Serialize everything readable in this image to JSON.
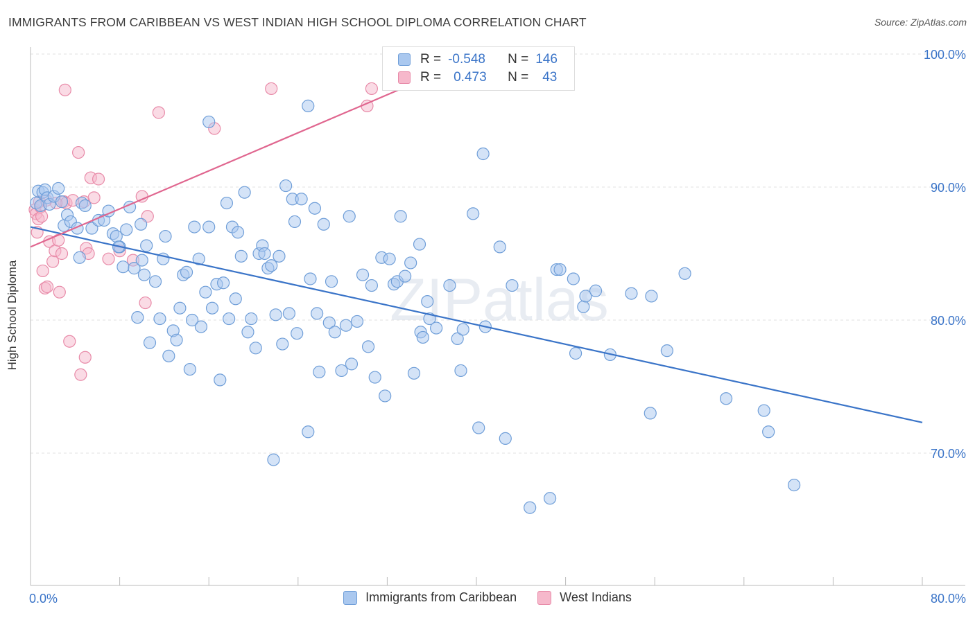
{
  "title": "IMMIGRANTS FROM CARIBBEAN VS WEST INDIAN HIGH SCHOOL DIPLOMA CORRELATION CHART",
  "source": "Source: ZipAtlas.com",
  "watermark": "ZIPatlas",
  "colors": {
    "blue_fill": "#aac8ef",
    "blue_stroke": "#6f9ed8",
    "blue_line": "#3a74c8",
    "pink_fill": "#f6b8cb",
    "pink_stroke": "#e88aa8",
    "pink_line": "#e0668f",
    "tick_text": "#3a74c8",
    "grid": "#e2e2e2"
  },
  "legend": {
    "rows": [
      {
        "r_label": "R =",
        "r_value": "-0.548",
        "n_label": "N =",
        "n_value": "146"
      },
      {
        "r_label": "R =",
        "r_value": "0.473",
        "n_label": "N =",
        "n_value": "43"
      }
    ]
  },
  "chart_data": {
    "type": "scatter",
    "title": "IMMIGRANTS FROM CARIBBEAN VS WEST INDIAN HIGH SCHOOL DIPLOMA CORRELATION CHART",
    "xlabel": "",
    "ylabel": "High School Diploma",
    "xlim": [
      0,
      80
    ],
    "ylim": [
      60,
      102
    ],
    "x_tick_labels": [
      "0.0%",
      "80.0%"
    ],
    "y_ticks": [
      70,
      80,
      90,
      100
    ],
    "y_tick_labels": [
      "70.0%",
      "80.0%",
      "90.0%",
      "100.0%"
    ],
    "grid": true,
    "legend_position": "top-center and bottom",
    "series": [
      {
        "name": "Immigrants from Caribbean",
        "trend": {
          "x": [
            0,
            80
          ],
          "y": [
            87.0,
            72.3
          ]
        },
        "points": [
          [
            0.5,
            88.8
          ],
          [
            0.7,
            89.7
          ],
          [
            0.9,
            88.6
          ],
          [
            1.1,
            89.6
          ],
          [
            1.3,
            89.8
          ],
          [
            1.5,
            89.2
          ],
          [
            1.7,
            88.7
          ],
          [
            2.1,
            89.3
          ],
          [
            2.5,
            89.9
          ],
          [
            2.8,
            88.9
          ],
          [
            3.0,
            87.1
          ],
          [
            3.3,
            87.9
          ],
          [
            3.6,
            87.4
          ],
          [
            4.2,
            86.9
          ],
          [
            4.6,
            88.8
          ],
          [
            4.9,
            88.6
          ],
          [
            5.5,
            86.9
          ],
          [
            6.1,
            87.5
          ],
          [
            6.6,
            87.5
          ],
          [
            7.0,
            88.2
          ],
          [
            7.4,
            86.5
          ],
          [
            7.7,
            86.3
          ],
          [
            8.0,
            85.5
          ],
          [
            8.3,
            84.0
          ],
          [
            8.6,
            86.8
          ],
          [
            8.9,
            88.5
          ],
          [
            9.3,
            83.9
          ],
          [
            9.6,
            80.2
          ],
          [
            9.9,
            87.2
          ],
          [
            10.2,
            83.4
          ],
          [
            10.4,
            85.6
          ],
          [
            10.7,
            78.3
          ],
          [
            11.2,
            82.9
          ],
          [
            11.6,
            80.1
          ],
          [
            11.9,
            84.6
          ],
          [
            12.1,
            86.3
          ],
          [
            12.4,
            77.3
          ],
          [
            12.8,
            79.2
          ],
          [
            13.1,
            78.5
          ],
          [
            13.4,
            80.9
          ],
          [
            13.7,
            83.4
          ],
          [
            14.0,
            83.6
          ],
          [
            14.3,
            76.3
          ],
          [
            14.7,
            87.0
          ],
          [
            15.1,
            84.6
          ],
          [
            15.3,
            79.5
          ],
          [
            15.7,
            82.1
          ],
          [
            16.0,
            87.0
          ],
          [
            16.3,
            80.9
          ],
          [
            16.7,
            82.7
          ],
          [
            17.0,
            75.5
          ],
          [
            17.3,
            82.8
          ],
          [
            17.6,
            88.8
          ],
          [
            17.8,
            80.1
          ],
          [
            18.1,
            87.0
          ],
          [
            18.4,
            81.6
          ],
          [
            18.6,
            86.6
          ],
          [
            18.9,
            84.8
          ],
          [
            19.2,
            89.6
          ],
          [
            19.5,
            79.1
          ],
          [
            19.8,
            80.1
          ],
          [
            20.2,
            77.9
          ],
          [
            20.5,
            85.0
          ],
          [
            20.8,
            85.6
          ],
          [
            21.0,
            85.0
          ],
          [
            21.3,
            83.9
          ],
          [
            21.6,
            84.1
          ],
          [
            22.0,
            80.4
          ],
          [
            22.3,
            84.8
          ],
          [
            22.6,
            78.2
          ],
          [
            22.9,
            90.1
          ],
          [
            23.2,
            80.5
          ],
          [
            23.5,
            89.1
          ],
          [
            23.7,
            87.4
          ],
          [
            23.9,
            79.0
          ],
          [
            24.3,
            89.1
          ],
          [
            24.9,
            71.6
          ],
          [
            25.1,
            83.1
          ],
          [
            25.5,
            88.4
          ],
          [
            25.7,
            80.5
          ],
          [
            25.9,
            76.1
          ],
          [
            26.3,
            87.2
          ],
          [
            26.8,
            79.8
          ],
          [
            27.0,
            82.9
          ],
          [
            27.3,
            79.1
          ],
          [
            27.9,
            76.2
          ],
          [
            28.3,
            79.6
          ],
          [
            28.6,
            87.8
          ],
          [
            28.8,
            76.7
          ],
          [
            29.3,
            79.9
          ],
          [
            29.8,
            83.4
          ],
          [
            30.3,
            78.0
          ],
          [
            30.6,
            82.6
          ],
          [
            30.9,
            75.7
          ],
          [
            31.5,
            84.7
          ],
          [
            31.8,
            74.3
          ],
          [
            32.2,
            84.6
          ],
          [
            32.6,
            82.7
          ],
          [
            32.9,
            82.9
          ],
          [
            33.2,
            87.8
          ],
          [
            33.6,
            83.3
          ],
          [
            34.1,
            84.3
          ],
          [
            34.4,
            76.0
          ],
          [
            34.9,
            85.7
          ],
          [
            35.0,
            79.1
          ],
          [
            35.2,
            78.7
          ],
          [
            35.6,
            81.4
          ],
          [
            35.8,
            80.1
          ],
          [
            36.4,
            79.4
          ],
          [
            37.6,
            82.6
          ],
          [
            38.3,
            78.6
          ],
          [
            38.6,
            76.2
          ],
          [
            38.8,
            79.3
          ],
          [
            39.7,
            88.0
          ],
          [
            40.2,
            71.9
          ],
          [
            40.8,
            79.5
          ],
          [
            42.1,
            85.5
          ],
          [
            42.6,
            71.1
          ],
          [
            43.2,
            82.6
          ],
          [
            44.8,
            65.9
          ],
          [
            46.6,
            66.6
          ],
          [
            47.2,
            83.8
          ],
          [
            47.5,
            83.8
          ],
          [
            48.7,
            83.1
          ],
          [
            48.9,
            77.5
          ],
          [
            49.6,
            81.0
          ],
          [
            49.8,
            81.8
          ],
          [
            50.7,
            82.2
          ],
          [
            52.0,
            77.4
          ],
          [
            53.9,
            82.0
          ],
          [
            55.6,
            73.0
          ],
          [
            55.7,
            81.8
          ],
          [
            57.1,
            77.7
          ],
          [
            58.7,
            83.5
          ],
          [
            62.4,
            74.1
          ],
          [
            65.8,
            73.2
          ],
          [
            66.2,
            71.6
          ],
          [
            68.5,
            67.6
          ],
          [
            16.0,
            94.9
          ],
          [
            24.9,
            96.1
          ],
          [
            40.6,
            92.5
          ],
          [
            21.8,
            69.5
          ],
          [
            10.0,
            84.5
          ],
          [
            7.9,
            85.5
          ],
          [
            4.4,
            84.7
          ],
          [
            14.5,
            80.0
          ]
        ]
      },
      {
        "name": "West Indians",
        "trend": {
          "x": [
            0,
            40
          ],
          "y": [
            85.5,
            99.8
          ]
        },
        "points": [
          [
            0.4,
            88.3
          ],
          [
            0.5,
            88.0
          ],
          [
            0.6,
            86.6
          ],
          [
            0.7,
            87.6
          ],
          [
            0.9,
            88.5
          ],
          [
            1.0,
            87.8
          ],
          [
            1.1,
            83.7
          ],
          [
            1.3,
            82.4
          ],
          [
            1.5,
            82.5
          ],
          [
            1.7,
            85.9
          ],
          [
            2.0,
            84.4
          ],
          [
            2.2,
            85.2
          ],
          [
            2.5,
            86.0
          ],
          [
            2.6,
            82.1
          ],
          [
            2.8,
            85.0
          ],
          [
            3.0,
            88.9
          ],
          [
            3.2,
            88.8
          ],
          [
            3.5,
            78.4
          ],
          [
            3.8,
            89.0
          ],
          [
            4.3,
            92.6
          ],
          [
            4.5,
            75.9
          ],
          [
            4.8,
            88.9
          ],
          [
            4.9,
            77.2
          ],
          [
            5.0,
            85.4
          ],
          [
            5.2,
            85.0
          ],
          [
            5.4,
            90.7
          ],
          [
            5.7,
            89.2
          ],
          [
            6.1,
            90.6
          ],
          [
            7.0,
            84.6
          ],
          [
            8.0,
            85.2
          ],
          [
            9.2,
            84.5
          ],
          [
            10.0,
            89.3
          ],
          [
            10.3,
            81.3
          ],
          [
            10.5,
            87.8
          ],
          [
            11.5,
            95.6
          ],
          [
            16.5,
            94.4
          ],
          [
            21.6,
            97.4
          ],
          [
            30.2,
            96.1
          ],
          [
            30.6,
            97.4
          ],
          [
            3.1,
            97.3
          ],
          [
            0.8,
            88.9
          ],
          [
            1.4,
            89.0
          ],
          [
            2.3,
            88.8
          ]
        ]
      }
    ]
  }
}
